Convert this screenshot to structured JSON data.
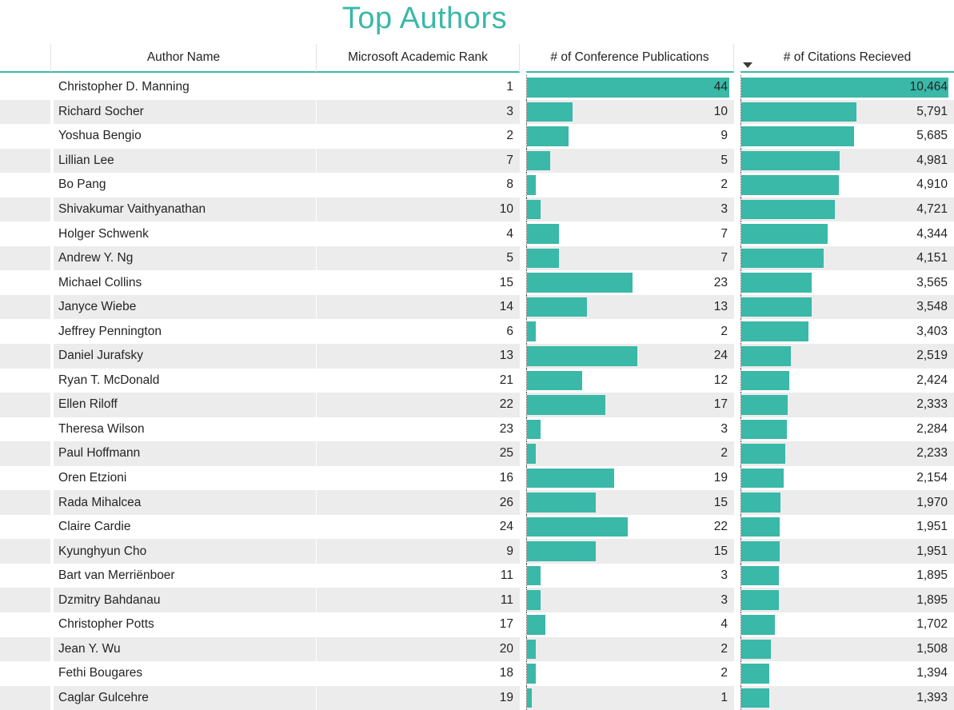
{
  "title": "Top Authors",
  "colors": {
    "accent": "#3AB8A8",
    "row_stripe": "#ECECEC",
    "text": "#252423",
    "sort_arrow": "#3a3a38"
  },
  "chart_data": {
    "type": "table",
    "title": "Top Authors",
    "columns": [
      "Author Name",
      "Microsoft Academic Rank",
      "# of Conference Publications",
      "# of Citations Recieved"
    ],
    "sort": {
      "column": "# of Citations Recieved",
      "order": "descending"
    },
    "data_bars": {
      "publications_max": 44,
      "citations_max": 10464
    },
    "rows": [
      {
        "author": "Christopher D. Manning",
        "rank": 1,
        "publications": 44,
        "citations": 10464
      },
      {
        "author": "Richard Socher",
        "rank": 3,
        "publications": 10,
        "citations": 5791
      },
      {
        "author": "Yoshua Bengio",
        "rank": 2,
        "publications": 9,
        "citations": 5685
      },
      {
        "author": "Lillian Lee",
        "rank": 7,
        "publications": 5,
        "citations": 4981
      },
      {
        "author": "Bo Pang",
        "rank": 8,
        "publications": 2,
        "citations": 4910
      },
      {
        "author": "Shivakumar Vaithyanathan",
        "rank": 10,
        "publications": 3,
        "citations": 4721
      },
      {
        "author": "Holger Schwenk",
        "rank": 4,
        "publications": 7,
        "citations": 4344
      },
      {
        "author": "Andrew Y. Ng",
        "rank": 5,
        "publications": 7,
        "citations": 4151
      },
      {
        "author": "Michael Collins",
        "rank": 15,
        "publications": 23,
        "citations": 3565
      },
      {
        "author": "Janyce Wiebe",
        "rank": 14,
        "publications": 13,
        "citations": 3548
      },
      {
        "author": "Jeffrey Pennington",
        "rank": 6,
        "publications": 2,
        "citations": 3403
      },
      {
        "author": "Daniel Jurafsky",
        "rank": 13,
        "publications": 24,
        "citations": 2519
      },
      {
        "author": "Ryan T. McDonald",
        "rank": 21,
        "publications": 12,
        "citations": 2424
      },
      {
        "author": "Ellen Riloff",
        "rank": 22,
        "publications": 17,
        "citations": 2333
      },
      {
        "author": "Theresa Wilson",
        "rank": 23,
        "publications": 3,
        "citations": 2284
      },
      {
        "author": "Paul Hoffmann",
        "rank": 25,
        "publications": 2,
        "citations": 2233
      },
      {
        "author": "Oren Etzioni",
        "rank": 16,
        "publications": 19,
        "citations": 2154
      },
      {
        "author": "Rada Mihalcea",
        "rank": 26,
        "publications": 15,
        "citations": 1970
      },
      {
        "author": "Claire Cardie",
        "rank": 24,
        "publications": 22,
        "citations": 1951
      },
      {
        "author": "Kyunghyun Cho",
        "rank": 9,
        "publications": 15,
        "citations": 1951
      },
      {
        "author": "Bart van Merriënboer",
        "rank": 11,
        "publications": 3,
        "citations": 1895
      },
      {
        "author": "Dzmitry Bahdanau",
        "rank": 11,
        "publications": 3,
        "citations": 1895
      },
      {
        "author": "Christopher Potts",
        "rank": 17,
        "publications": 4,
        "citations": 1702
      },
      {
        "author": "Jean Y. Wu",
        "rank": 20,
        "publications": 2,
        "citations": 1508
      },
      {
        "author": "Fethi Bougares",
        "rank": 18,
        "publications": 2,
        "citations": 1394
      },
      {
        "author": "Caglar Gulcehre",
        "rank": 19,
        "publications": 1,
        "citations": 1393
      }
    ]
  }
}
